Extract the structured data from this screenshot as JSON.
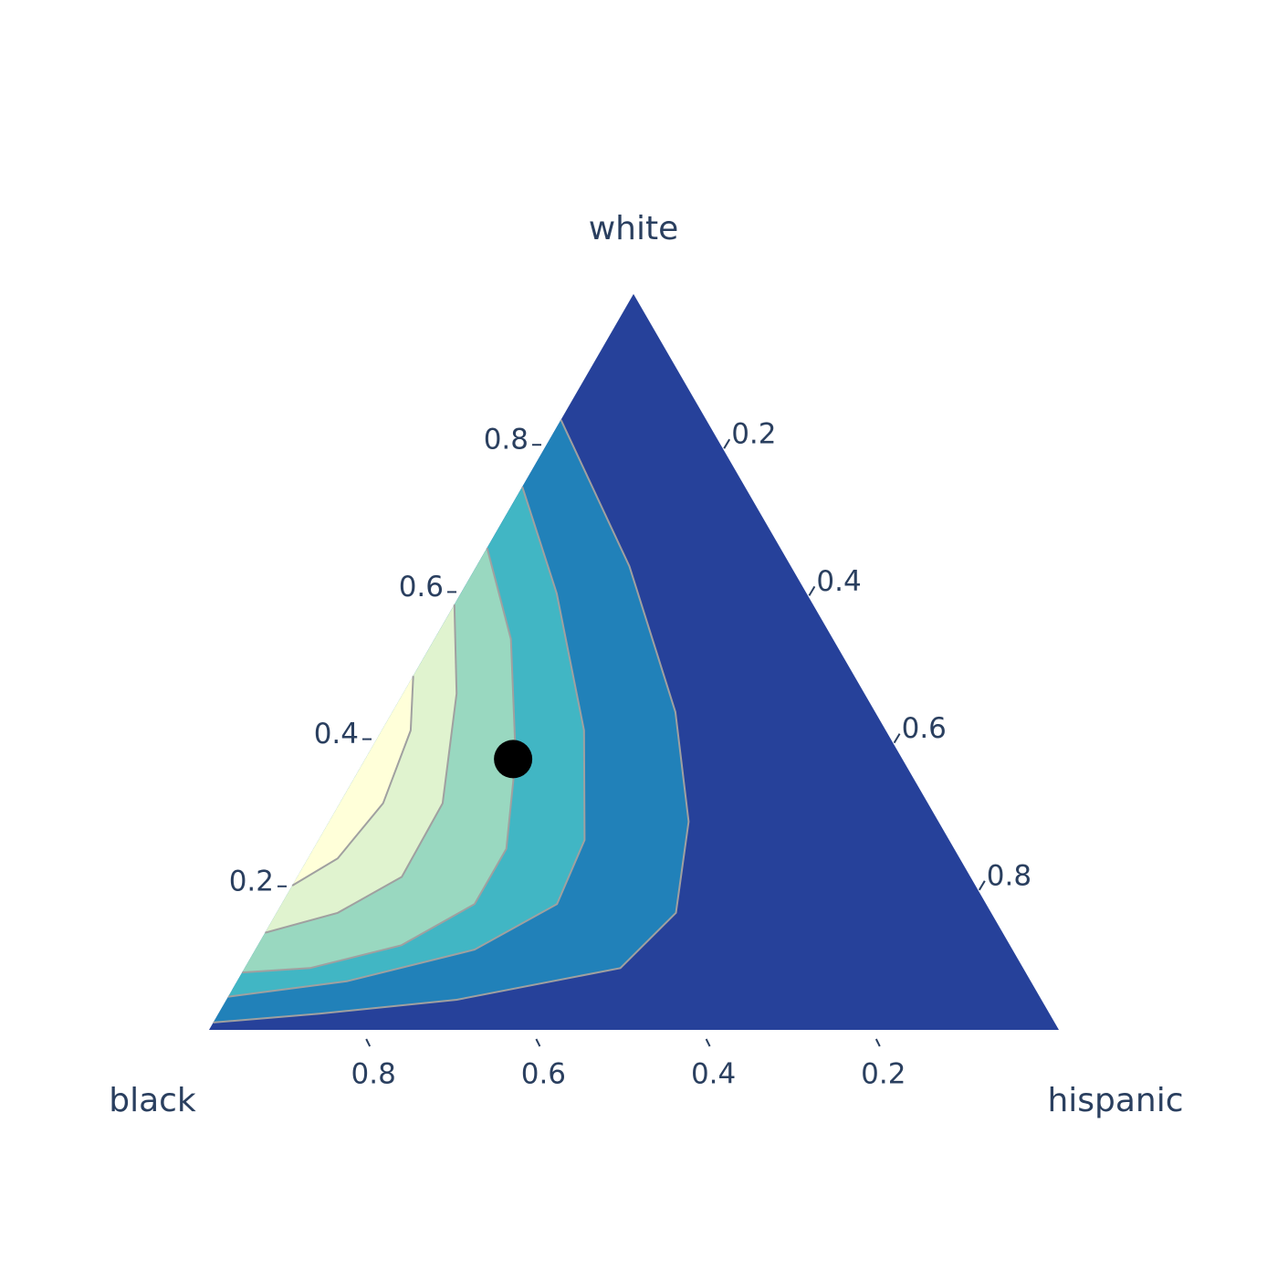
{
  "chart_data": {
    "type": "ternary",
    "a_title": "white",
    "b_title": "black",
    "c_title": "hispanic",
    "a_ticks": [
      0.2,
      0.4,
      0.6,
      0.8
    ],
    "b_ticks": [
      0.8,
      0.6,
      0.4,
      0.2
    ],
    "c_ticks": [
      0.2,
      0.4,
      0.6,
      0.8
    ],
    "background_color": "#26419a",
    "contours": [
      {
        "color": "#2181b9",
        "white": [
          0.829,
          0.63,
          0.432,
          0.283,
          0.159,
          0.084,
          0.041,
          0.022,
          0.01
        ],
        "hispanic": [
          0,
          0.18,
          0.333,
          0.423,
          0.47,
          0.442,
          0.271,
          0.119,
          0
        ]
      },
      {
        "color": "#41b6c4",
        "white": [
          0.738,
          0.593,
          0.407,
          0.258,
          0.171,
          0.109,
          0.066,
          0.045
        ],
        "hispanic": [
          0,
          0.113,
          0.238,
          0.313,
          0.324,
          0.258,
          0.129,
          0
        ]
      },
      {
        "color": "#99d8c0",
        "white": [
          0.655,
          0.531,
          0.37,
          0.246,
          0.171,
          0.115,
          0.084,
          0.078
        ],
        "hispanic": [
          0,
          0.09,
          0.176,
          0.227,
          0.227,
          0.169,
          0.077,
          0
        ]
      },
      {
        "color": "#e0f3cf",
        "white": [
          0.578,
          0.457,
          0.308,
          0.208,
          0.159,
          0.132
        ],
        "hispanic": [
          0,
          0.063,
          0.121,
          0.123,
          0.072,
          0
        ]
      },
      {
        "color": "#ffffd9",
        "white": [
          0.481,
          0.407,
          0.308,
          0.233,
          0.196
        ],
        "hispanic": [
          0,
          0.034,
          0.051,
          0.035,
          0
        ]
      }
    ],
    "series": [
      {
        "color": "#000000",
        "white": [
          0.368
        ],
        "black": [
          0.458
        ],
        "hispanic": [
          0.174
        ]
      }
    ]
  }
}
